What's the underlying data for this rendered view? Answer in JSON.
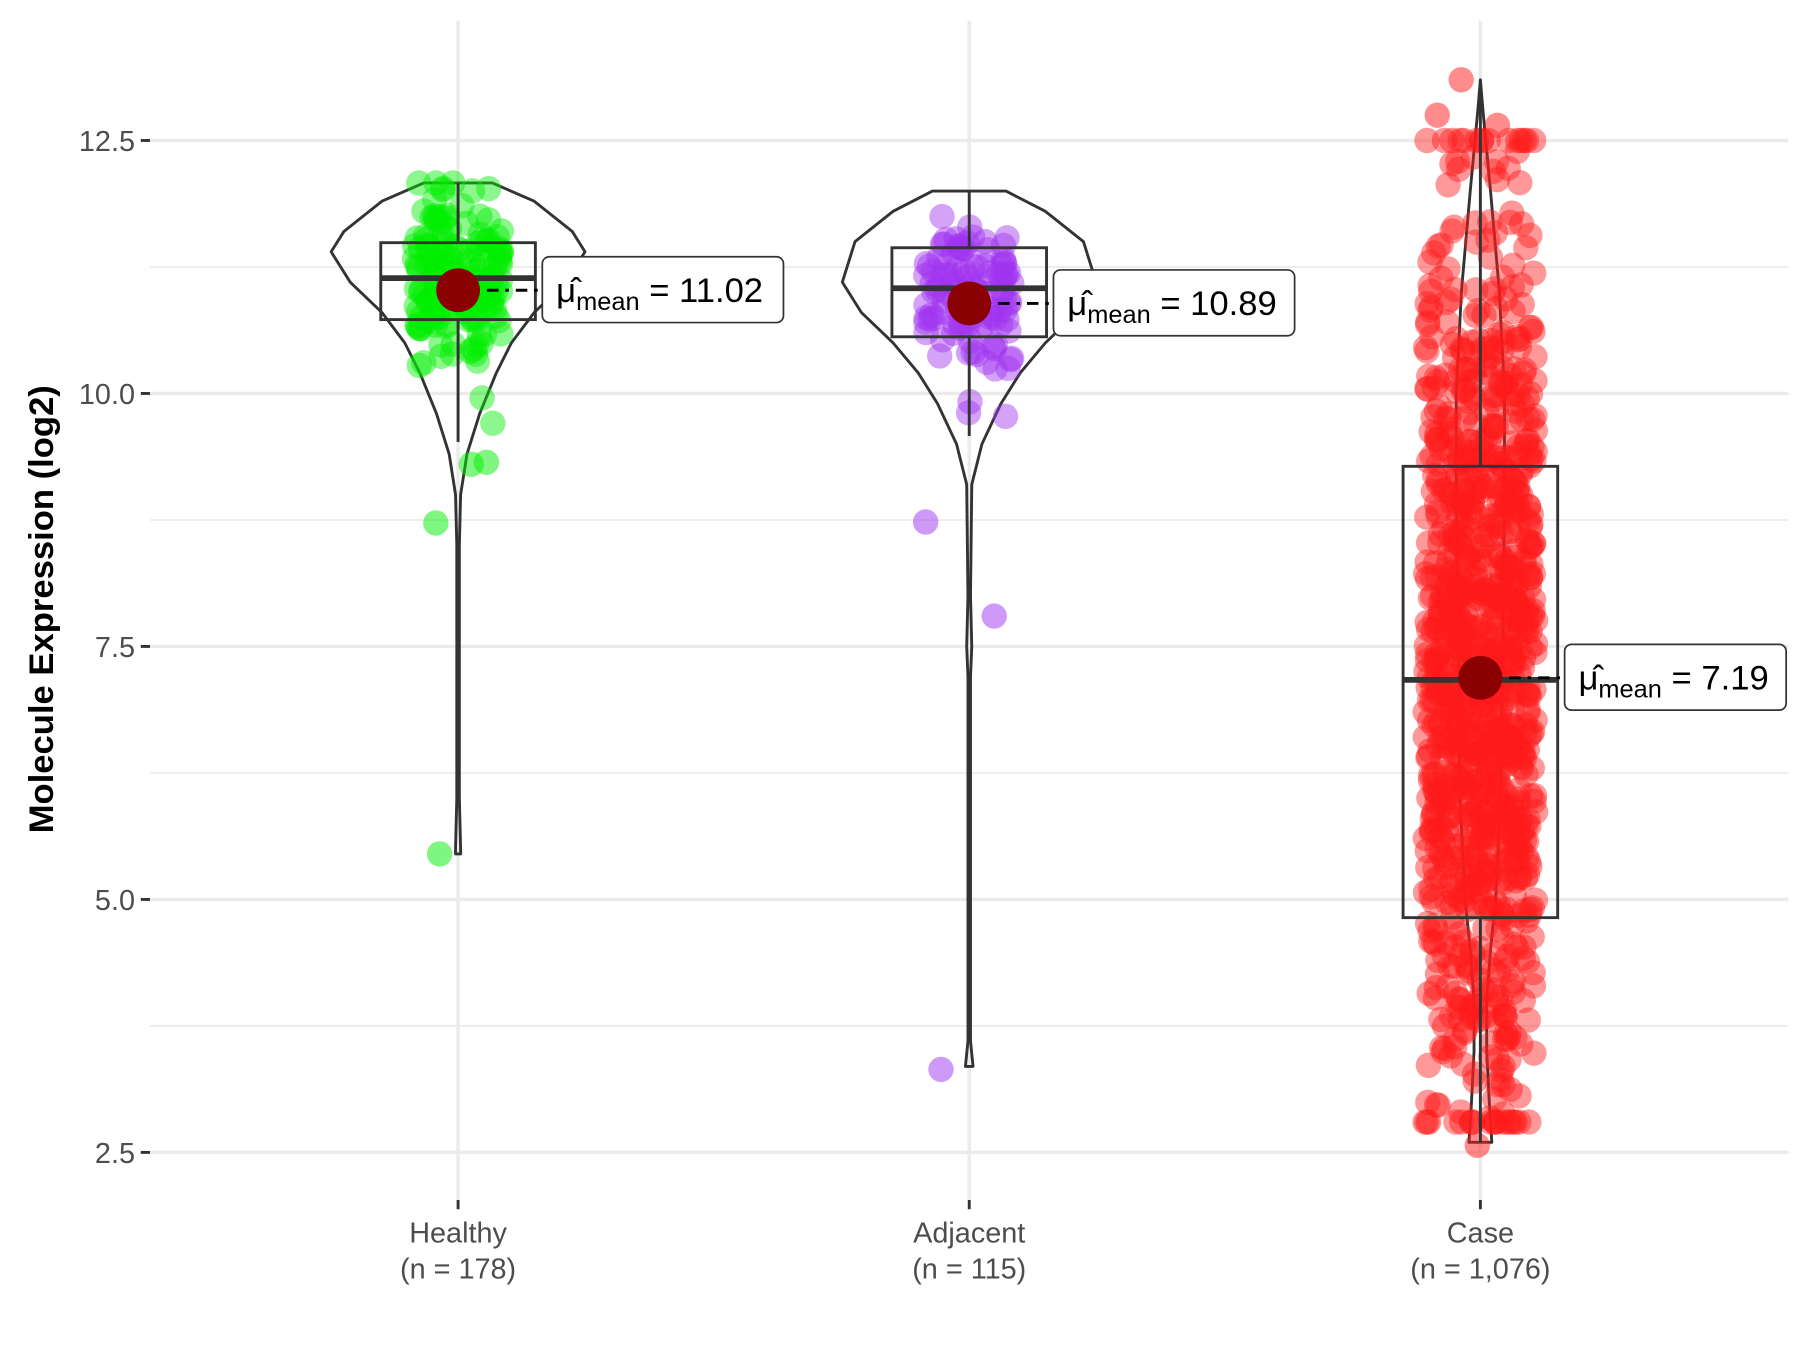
{
  "chart_data": {
    "type": "violin",
    "title": "",
    "xlabel": "",
    "ylabel": "Molecule Expression (log2)",
    "ylim": [
      2.0,
      13.5
    ],
    "yticks": [
      "2.5",
      "5.0",
      "7.5",
      "10.0",
      "12.5"
    ],
    "ytick_values": [
      2.5,
      5.0,
      7.5,
      10.0,
      12.5
    ],
    "grid": true,
    "groups": [
      {
        "name": "Healthy",
        "n_label": "(n = 178)",
        "n": 178,
        "color": "#00ee00",
        "mean": 11.02,
        "mean_label_value": "11.02",
        "box": {
          "q1": 10.73,
          "median": 11.14,
          "q3": 11.49,
          "whisker_low": 9.52,
          "whisker_high": 12.08
        },
        "violin": [
          [
            12.08,
            0.27
          ],
          [
            11.9,
            0.6
          ],
          [
            11.6,
            0.9
          ],
          [
            11.4,
            1.0
          ],
          [
            11.1,
            0.85
          ],
          [
            10.8,
            0.6
          ],
          [
            10.5,
            0.42
          ],
          [
            10.2,
            0.3
          ],
          [
            9.8,
            0.17
          ],
          [
            9.4,
            0.07
          ],
          [
            9.0,
            0.02
          ],
          [
            8.5,
            0.01
          ],
          [
            6.0,
            0.01
          ],
          [
            5.5,
            0.02
          ],
          [
            5.45,
            0.02
          ]
        ],
        "outliers": [
          9.3,
          9.32,
          8.72,
          5.45
        ],
        "center": 11.1,
        "spread": 0.55
      },
      {
        "name": "Adjacent",
        "n_label": "(n = 115)",
        "n": 115,
        "color": "#a033f0",
        "mean": 10.89,
        "mean_label_value": "10.89",
        "box": {
          "q1": 10.56,
          "median": 11.04,
          "q3": 11.44,
          "whisker_low": 9.58,
          "whisker_high": 12.0
        },
        "violin": [
          [
            12.0,
            0.29
          ],
          [
            11.8,
            0.6
          ],
          [
            11.5,
            0.9
          ],
          [
            11.1,
            1.0
          ],
          [
            10.8,
            0.85
          ],
          [
            10.5,
            0.6
          ],
          [
            10.2,
            0.4
          ],
          [
            9.9,
            0.25
          ],
          [
            9.5,
            0.1
          ],
          [
            9.1,
            0.02
          ],
          [
            8.0,
            0.01
          ],
          [
            7.5,
            0.02
          ],
          [
            7.2,
            0.01
          ],
          [
            3.6,
            0.01
          ],
          [
            3.35,
            0.03
          ]
        ],
        "outliers": [
          8.73,
          7.8,
          3.32
        ],
        "center": 10.95,
        "spread": 0.55
      },
      {
        "name": "Case",
        "n_label": "(n = 1,076)",
        "n": 1076,
        "color": "#ff1a1a",
        "mean": 7.19,
        "mean_label_value": "7.19",
        "box": {
          "q1": 4.82,
          "median": 7.17,
          "q3": 9.28,
          "whisker_low": 2.6,
          "whisker_high": 13.1
        },
        "violin": [
          [
            13.1,
            0.0
          ],
          [
            12.8,
            0.02
          ],
          [
            12.4,
            0.05
          ],
          [
            12.0,
            0.08
          ],
          [
            11.0,
            0.15
          ],
          [
            10.0,
            0.19
          ],
          [
            9.0,
            0.19
          ],
          [
            8.0,
            0.18
          ],
          [
            7.0,
            0.17
          ],
          [
            6.0,
            0.16
          ],
          [
            5.0,
            0.12
          ],
          [
            4.5,
            0.08
          ],
          [
            4.0,
            0.05
          ],
          [
            3.5,
            0.05
          ],
          [
            3.0,
            0.07
          ],
          [
            2.6,
            0.09
          ]
        ],
        "outliers": [
          13.1,
          12.75,
          12.65,
          2.57
        ],
        "center": 7.2,
        "spread": 2.6
      }
    ],
    "mean_symbol": "μ̂",
    "mean_subscript": "mean",
    "mean_eq": "="
  }
}
